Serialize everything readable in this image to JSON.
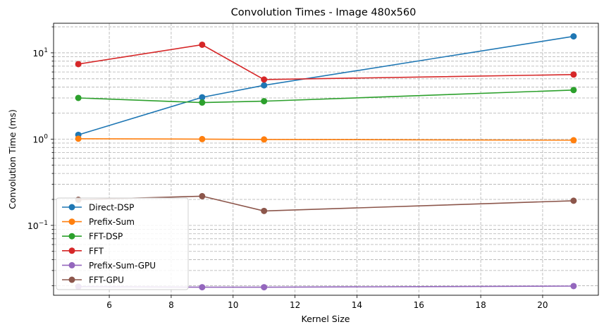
{
  "chart_data": {
    "type": "line",
    "title": "Convolution Times - Image 480x560",
    "xlabel": "Kernel Size",
    "ylabel": "Convolution Time (ms)",
    "xlim": [
      4.2,
      21.8
    ],
    "ylim": [
      0.0155,
      22
    ],
    "yscale": "log",
    "x_ticks": [
      6,
      8,
      10,
      12,
      14,
      16,
      18,
      20
    ],
    "y_major_ticks": [
      {
        "value": 0.1,
        "base": "10",
        "exp": "−1"
      },
      {
        "value": 1,
        "base": "10",
        "exp": "0"
      },
      {
        "value": 10,
        "base": "10",
        "exp": "1"
      }
    ],
    "grid": true,
    "grid_which": "both",
    "legend_position": "lower-left",
    "series": [
      {
        "name": "Direct-DSP",
        "color": "#1f77b4",
        "x": [
          5,
          9,
          11,
          21
        ],
        "values": [
          1.12,
          3.05,
          4.2,
          15.5
        ]
      },
      {
        "name": "Prefix-Sum",
        "color": "#ff7f0e",
        "x": [
          5,
          9,
          11,
          21
        ],
        "values": [
          1.01,
          1.0,
          0.99,
          0.97
        ]
      },
      {
        "name": "FFT-DSP",
        "color": "#2ca02c",
        "x": [
          5,
          9,
          11,
          21
        ],
        "values": [
          3.0,
          2.65,
          2.75,
          3.7
        ]
      },
      {
        "name": "FFT",
        "color": "#d62728",
        "x": [
          5,
          9,
          11,
          21
        ],
        "values": [
          7.4,
          12.4,
          4.9,
          5.6
        ]
      },
      {
        "name": "Prefix-Sum-GPU",
        "color": "#9467bd",
        "x": [
          5,
          9,
          11,
          21
        ],
        "values": [
          0.0195,
          0.0192,
          0.0192,
          0.0198
        ]
      },
      {
        "name": "FFT-GPU",
        "color": "#8c564b",
        "x": [
          5,
          9,
          11,
          21
        ],
        "values": [
          0.198,
          0.218,
          0.147,
          0.193
        ]
      }
    ]
  }
}
